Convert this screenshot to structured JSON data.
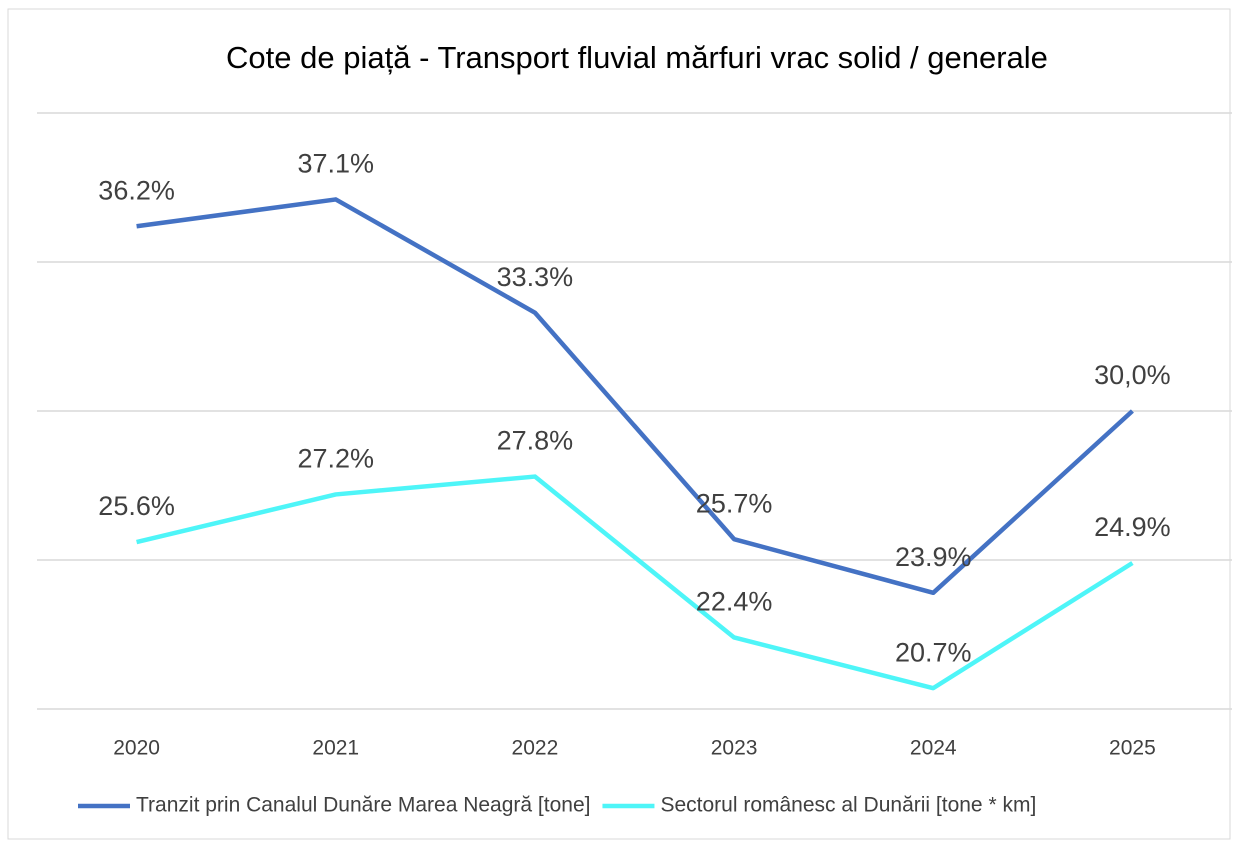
{
  "chart_data": {
    "type": "line",
    "title": "Cote de piață - Transport fluvial mărfuri vrac solid / generale",
    "categories": [
      "2020",
      "2021",
      "2022",
      "2023",
      "2024",
      "2025"
    ],
    "series": [
      {
        "name": "Tranzit prin Canalul Dunăre Marea Neagră [tone]",
        "color": "#4472c4",
        "values": [
          36.2,
          37.1,
          33.3,
          25.7,
          23.9,
          30.0
        ],
        "value_labels": [
          "36.2%",
          "37.1%",
          "33.3%",
          "25.7%",
          "23.9%",
          "30,0%"
        ]
      },
      {
        "name": "Sectorul românesc al Dunării [tone * km]",
        "color": "#4ef5f8",
        "values": [
          25.6,
          27.2,
          27.8,
          22.4,
          20.7,
          24.9
        ],
        "value_labels": [
          "25.6%",
          "27.2%",
          "27.8%",
          "22.4%",
          "20.7%",
          "24.9%"
        ]
      }
    ],
    "ylim": [
      20,
      40
    ],
    "yticks": [
      20,
      25,
      30,
      35,
      40
    ],
    "grid": true,
    "legend": "bottom"
  }
}
